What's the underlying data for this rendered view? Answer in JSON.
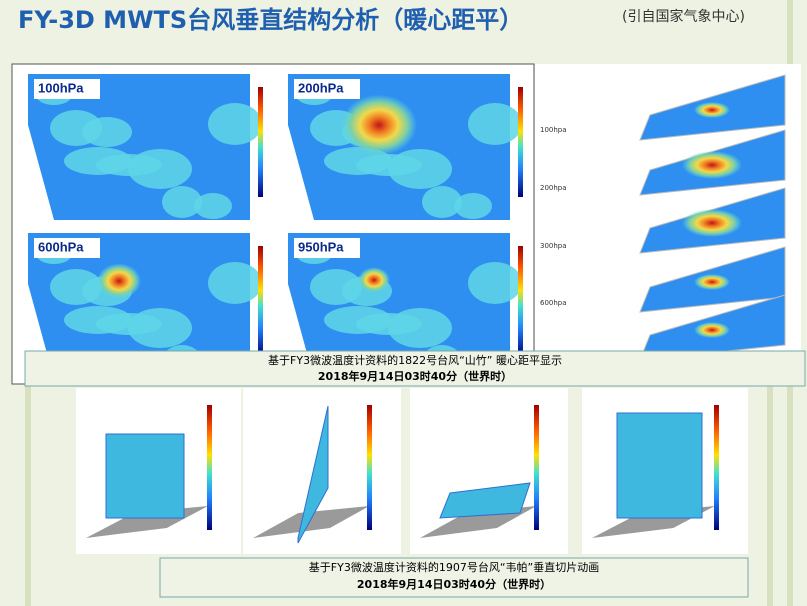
{
  "header": {
    "title": "FY-3D MWTS台风垂直结构分析（暖心距平）",
    "source": "(引自国家气象中心)"
  },
  "panels": [
    "100hPa",
    "200hPa",
    "600hPa",
    "950hPa"
  ],
  "stack_levels": [
    "100hpa",
    "200hpa",
    "300hpa",
    "600hpa"
  ],
  "caption_top": [
    "基于FY3微波温度计资料的1822号台风“山竹” 暖心距平显示",
    "2018年9月14日03时40分（世界时）"
  ],
  "caption_bottom": [
    "基于FY3微波温度计资料的1907号台风“韦帕”垂直切片动画",
    "2018年9月14日03时40分（世界时）"
  ]
}
